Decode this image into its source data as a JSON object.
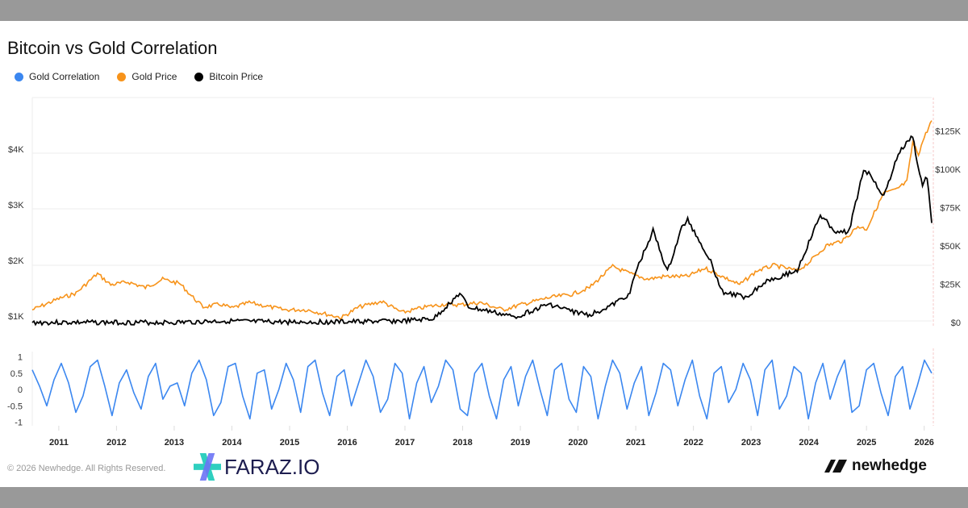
{
  "chart_data": {
    "type": "line",
    "title": "Bitcoin vs Gold Correlation",
    "legend": [
      "Gold Correlation",
      "Gold Price",
      "Bitcoin Price"
    ],
    "legend_placement": "top-left",
    "colors": {
      "correlation": "#3b87f0",
      "gold": "#f7931a",
      "bitcoin": "#000000"
    },
    "x_ticks": [
      "2011",
      "2012",
      "2013",
      "2014",
      "2015",
      "2016",
      "2017",
      "2018",
      "2019",
      "2020",
      "2021",
      "2022",
      "2023",
      "2024",
      "2025",
      "2026"
    ],
    "xlim": [
      2010.54,
      2026.13
    ],
    "left_axis": {
      "ticks": [
        "$1K",
        "$2K",
        "$3K",
        "$4K"
      ],
      "values": [
        1000,
        2000,
        3000,
        4000
      ],
      "series": "Gold Price"
    },
    "right_axis": {
      "ticks": [
        "$0",
        "$25K",
        "$50K",
        "$75K",
        "$100K",
        "$125K"
      ],
      "values": [
        0,
        25000,
        50000,
        75000,
        100000,
        125000
      ],
      "series": "Bitcoin Price"
    },
    "correlation_axis": {
      "ticks": [
        "1",
        "0.5",
        "0",
        "-0.5",
        "-1"
      ],
      "values": [
        1,
        0.5,
        0,
        -0.5,
        -1
      ]
    },
    "grid": true,
    "series": [
      {
        "name": "Gold Price",
        "x": [
          2010.54,
          2011.0,
          2011.3,
          2011.67,
          2011.9,
          2012.2,
          2012.5,
          2012.8,
          2013.1,
          2013.3,
          2013.5,
          2013.8,
          2014.0,
          2014.3,
          2014.9,
          2015.3,
          2015.9,
          2016.2,
          2016.6,
          2016.95,
          2017.4,
          2017.7,
          2017.95,
          2018.3,
          2018.7,
          2019.0,
          2019.5,
          2019.9,
          2020.2,
          2020.6,
          2020.9,
          2021.2,
          2021.5,
          2021.9,
          2022.2,
          2022.5,
          2022.8,
          2023.1,
          2023.4,
          2023.8,
          2024.0,
          2024.3,
          2024.6,
          2024.85,
          2025.0,
          2025.3,
          2025.5,
          2025.7,
          2025.8,
          2025.9,
          2026.0,
          2026.13
        ],
        "values": [
          1200,
          1400,
          1500,
          1850,
          1650,
          1700,
          1600,
          1750,
          1670,
          1450,
          1250,
          1300,
          1230,
          1330,
          1200,
          1200,
          1060,
          1250,
          1350,
          1150,
          1260,
          1300,
          1290,
          1330,
          1200,
          1290,
          1420,
          1480,
          1600,
          1980,
          1850,
          1750,
          1800,
          1800,
          1950,
          1800,
          1650,
          1900,
          2000,
          1900,
          2050,
          2350,
          2450,
          2700,
          2650,
          3300,
          3350,
          3500,
          4200,
          4000,
          4300,
          4600
        ]
      },
      {
        "name": "Bitcoin Price",
        "x": [
          2010.54,
          2012.0,
          2013.0,
          2013.9,
          2014.3,
          2015.0,
          2016.0,
          2017.0,
          2017.5,
          2017.95,
          2018.1,
          2018.5,
          2018.9,
          2019.5,
          2019.9,
          2020.2,
          2020.6,
          2020.9,
          2021.0,
          2021.3,
          2021.55,
          2021.8,
          2021.9,
          2022.3,
          2022.5,
          2022.9,
          2023.3,
          2023.5,
          2023.8,
          2024.2,
          2024.5,
          2024.7,
          2024.95,
          2025.1,
          2025.3,
          2025.55,
          2025.8,
          2025.9,
          2025.97,
          2026.05,
          2026.13
        ],
        "values": [
          0,
          5,
          13,
          1000,
          500,
          300,
          430,
          1000,
          2500,
          19000,
          10000,
          7000,
          3500,
          12000,
          7200,
          5000,
          11500,
          19000,
          33000,
          60000,
          33000,
          62000,
          67000,
          40000,
          20000,
          16500,
          28000,
          30000,
          34000,
          70000,
          58000,
          60000,
          100000,
          95000,
          82000,
          110000,
          122000,
          100000,
          90000,
          95000,
          65000
        ]
      },
      {
        "name": "Gold Correlation",
        "x_start": 2010.54,
        "x_end": 2026.13,
        "values": [
          0.6,
          0.1,
          -0.5,
          0.3,
          0.8,
          0.2,
          -0.7,
          -0.2,
          0.7,
          0.9,
          0.1,
          -0.8,
          0.2,
          0.6,
          -0.1,
          -0.6,
          0.4,
          0.8,
          -0.3,
          0.1,
          0.2,
          -0.5,
          0.5,
          0.9,
          0.3,
          -0.8,
          -0.4,
          0.7,
          0.8,
          -0.2,
          -0.9,
          0.5,
          0.6,
          -0.6,
          0.0,
          0.8,
          0.3,
          -0.7,
          0.7,
          0.9,
          -0.1,
          -0.8,
          0.4,
          0.6,
          -0.5,
          0.2,
          0.9,
          0.4,
          -0.7,
          -0.3,
          0.8,
          0.5,
          -0.9,
          0.2,
          0.7,
          -0.4,
          0.1,
          0.9,
          0.6,
          -0.6,
          -0.8,
          0.5,
          0.8,
          -0.2,
          -0.9,
          0.3,
          0.7,
          -0.5,
          0.4,
          0.9,
          0.0,
          -0.8,
          0.6,
          0.8,
          -0.3,
          -0.7,
          0.7,
          0.4,
          -0.9,
          0.1,
          0.9,
          0.5,
          -0.6,
          0.2,
          0.7,
          -0.8,
          -0.1,
          0.8,
          0.6,
          -0.5,
          0.3,
          0.9,
          -0.2,
          -0.9,
          0.5,
          0.7,
          -0.4,
          0.0,
          0.8,
          0.3,
          -0.8,
          0.6,
          0.9,
          -0.6,
          -0.2,
          0.7,
          0.5,
          -0.9,
          0.2,
          0.8,
          -0.3,
          0.4,
          0.9,
          -0.7,
          -0.5,
          0.6,
          0.8,
          -0.1,
          -0.8,
          0.4,
          0.7,
          -0.6,
          0.1,
          0.9,
          0.5
        ]
      }
    ]
  },
  "footer": {
    "copyright": "© 2026 Newhedge. All Rights Reserved.",
    "watermark": "FARAZ.IO",
    "brand": "newhedge"
  }
}
